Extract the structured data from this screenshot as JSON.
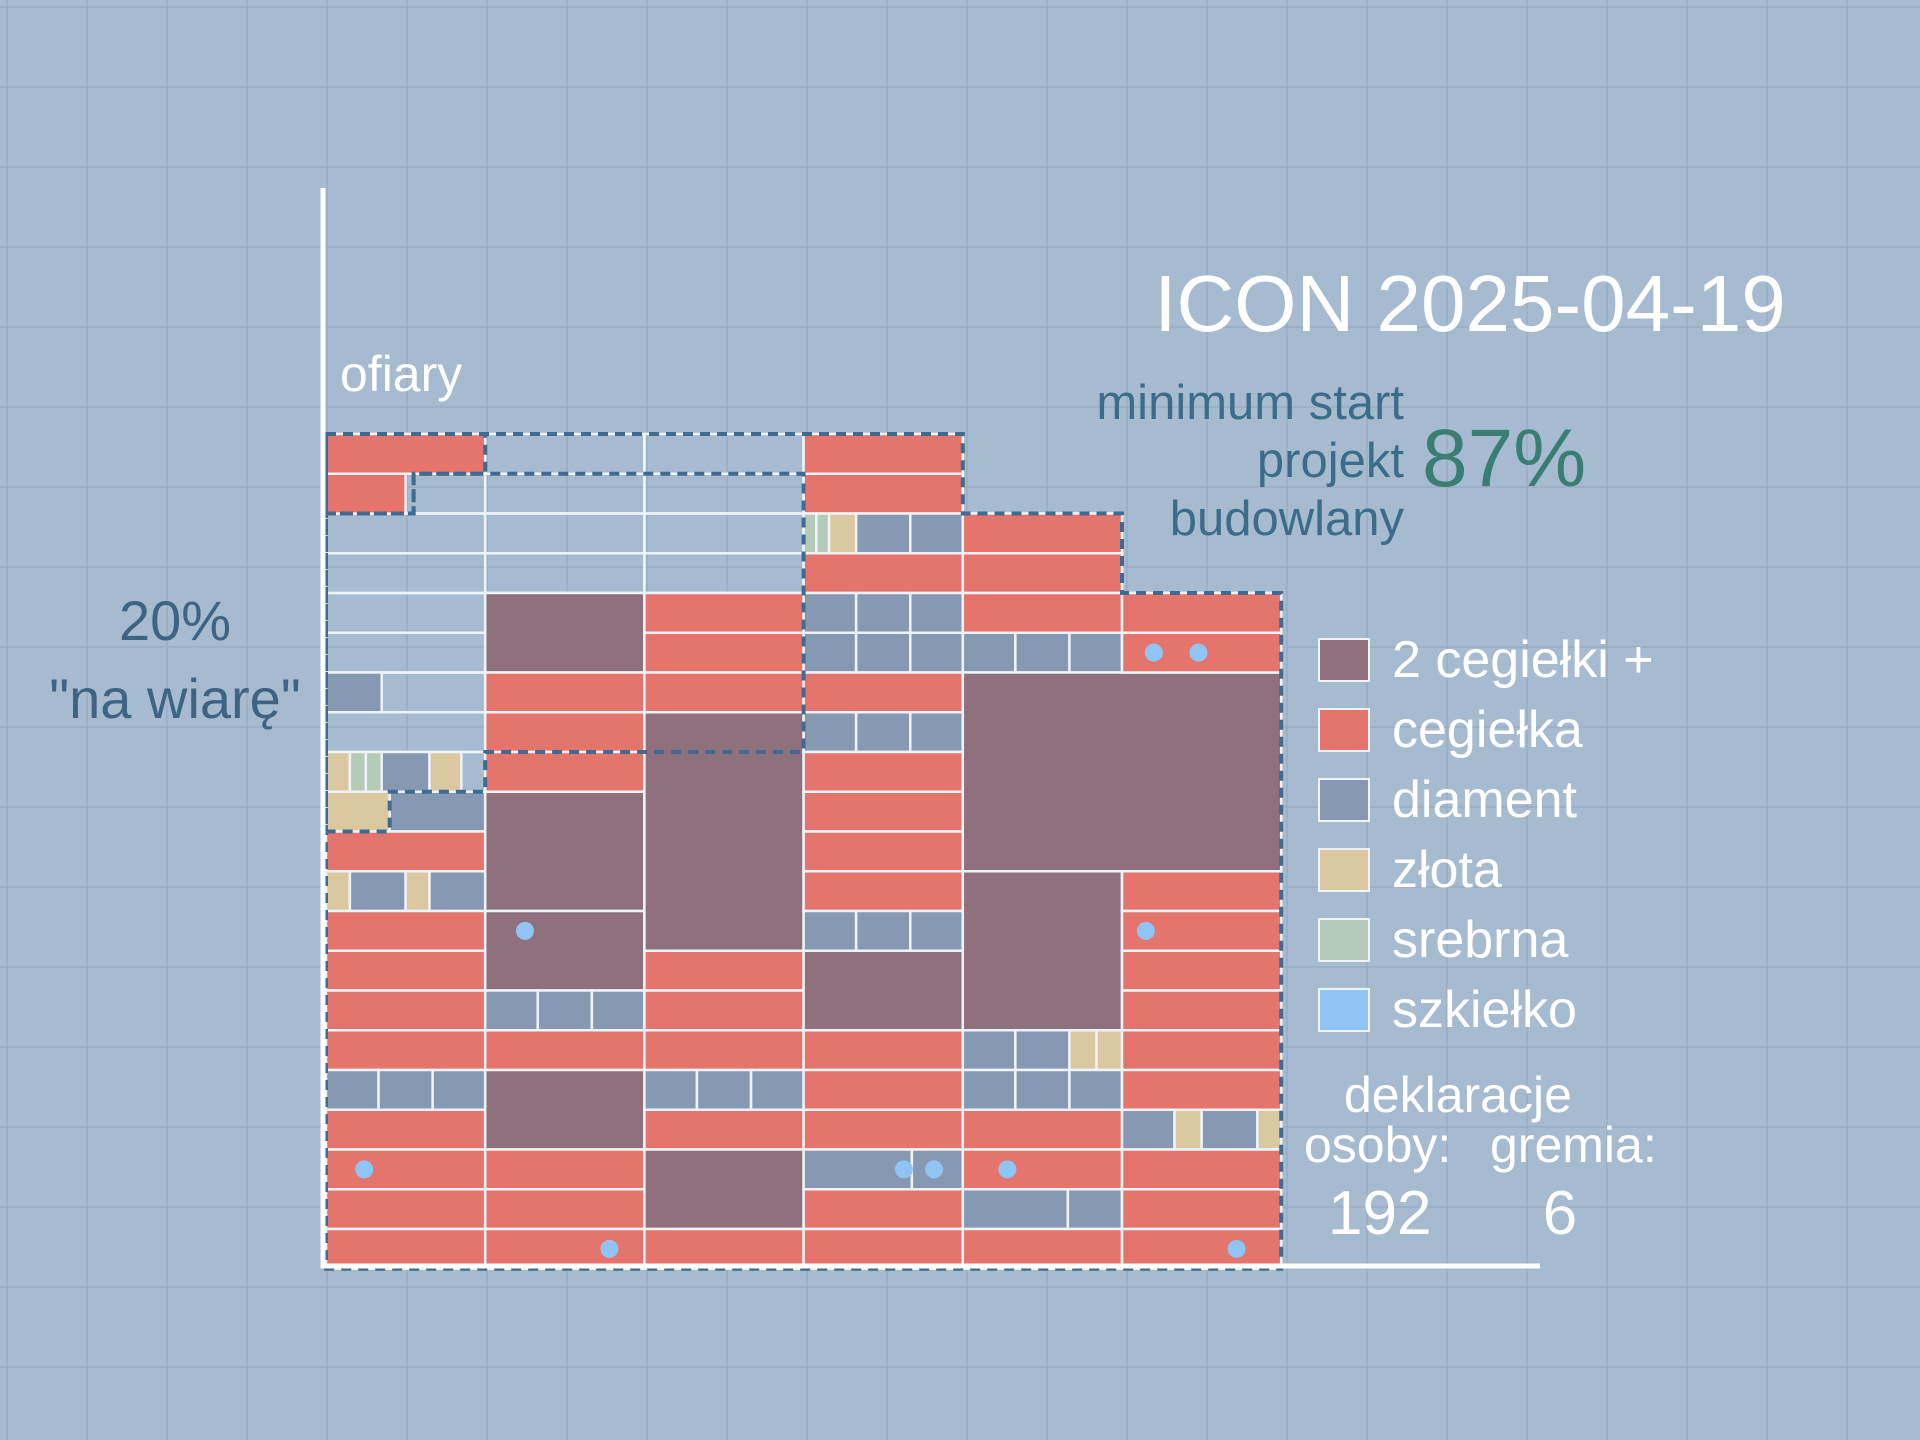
{
  "title": "ICON 2025-04-19",
  "chart_data": {
    "type": "brick-wall",
    "ylabel": "ofiary",
    "annotation_left": "20%\n\"na wiarę\"",
    "minimum_label": "minimum start\nprojekt\nbudowlany",
    "minimum_value": "87%",
    "rows_total": 21,
    "column_heights_rows": [
      21,
      21,
      21,
      21,
      19,
      17
    ],
    "legend": [
      {
        "key": "plus2",
        "label": "2 cegiełki +",
        "color": "#8f717d"
      },
      {
        "key": "brick",
        "label": "cegiełka",
        "color": "#e5756c"
      },
      {
        "key": "diamond",
        "label": "diament",
        "color": "#8799b2"
      },
      {
        "key": "gold",
        "label": "złota",
        "color": "#dcc8a0"
      },
      {
        "key": "silver",
        "label": "srebrna",
        "color": "#b5cab9"
      },
      {
        "key": "glass",
        "label": "szkiełko",
        "color": "#8fc4f5"
      }
    ],
    "columns": [
      [
        [
          "brick",
          0,
          1
        ],
        [
          "brick",
          1,
          1,
          0.5
        ],
        [
          "diamond",
          6,
          1,
          0.35
        ],
        [
          "gold",
          8,
          1,
          0.15
        ],
        [
          "silver",
          8,
          1,
          0.1
        ],
        [
          "silver",
          8,
          1,
          0.1
        ],
        [
          "diamond",
          8,
          1,
          0.3
        ],
        [
          "gold",
          8,
          1,
          0.2
        ],
        [
          "gold",
          9,
          1,
          0.4
        ],
        [
          "diamond",
          9,
          1,
          0.6
        ],
        [
          "brick",
          10,
          1
        ],
        [
          "gold",
          11,
          1,
          0.15
        ],
        [
          "diamond",
          11,
          1,
          0.35
        ],
        [
          "gold",
          11,
          1,
          0.15
        ],
        [
          "diamond",
          11,
          1,
          0.35
        ],
        [
          "brick",
          12,
          1
        ],
        [
          "brick",
          13,
          1
        ],
        [
          "brick",
          14,
          1
        ],
        [
          "brick",
          15,
          1
        ],
        [
          "diamond",
          16,
          1,
          0.33
        ],
        [
          "diamond",
          16,
          1,
          0.34
        ],
        [
          "diamond",
          16,
          1,
          0.33
        ],
        [
          "brick",
          17,
          1
        ],
        [
          "brick",
          18,
          1
        ],
        [
          "brick",
          19,
          1
        ],
        [
          "brick",
          20,
          1
        ]
      ],
      [
        [
          "plus2",
          4,
          2
        ],
        [
          "brick",
          6,
          1
        ],
        [
          "brick",
          7,
          1
        ],
        [
          "brick",
          8,
          1
        ],
        [
          "plus2",
          9,
          3
        ],
        [
          "plus2",
          12,
          2
        ],
        [
          "diamond",
          14,
          1,
          0.33
        ],
        [
          "diamond",
          14,
          1,
          0.34
        ],
        [
          "diamond",
          14,
          1,
          0.33
        ],
        [
          "brick",
          15,
          1
        ],
        [
          "plus2",
          16,
          2
        ],
        [
          "brick",
          18,
          1
        ],
        [
          "brick",
          19,
          1
        ],
        [
          "brick",
          20,
          1
        ]
      ],
      [
        [
          "brick",
          4,
          1
        ],
        [
          "brick",
          5,
          1
        ],
        [
          "brick",
          6,
          1
        ],
        [
          "plus2",
          7,
          6
        ],
        [
          "brick",
          13,
          1
        ],
        [
          "brick",
          14,
          1
        ],
        [
          "brick",
          15,
          1
        ],
        [
          "diamond",
          16,
          1,
          0.33
        ],
        [
          "diamond",
          16,
          1,
          0.34
        ],
        [
          "diamond",
          16,
          1,
          0.33
        ],
        [
          "brick",
          17,
          1
        ],
        [
          "plus2",
          18,
          2
        ],
        [
          "brick",
          20,
          1
        ]
      ],
      [
        [
          "brick",
          0,
          1
        ],
        [
          "brick",
          1,
          1
        ],
        [
          "silver",
          2,
          1,
          0.08
        ],
        [
          "silver",
          2,
          1,
          0.08
        ],
        [
          "gold",
          2,
          1,
          0.17
        ],
        [
          "diamond",
          2,
          1,
          0.34
        ],
        [
          "diamond",
          2,
          1,
          0.33
        ],
        [
          "brick",
          3,
          1
        ],
        [
          "diamond",
          4,
          1,
          0.33
        ],
        [
          "diamond",
          4,
          1,
          0.34
        ],
        [
          "diamond",
          4,
          1,
          0.33
        ],
        [
          "diamond",
          5,
          1,
          0.33
        ],
        [
          "diamond",
          5,
          1,
          0.34
        ],
        [
          "diamond",
          5,
          1,
          0.33
        ],
        [
          "brick",
          6,
          1
        ],
        [
          "diamond",
          7,
          1,
          0.33
        ],
        [
          "diamond",
          7,
          1,
          0.34
        ],
        [
          "diamond",
          7,
          1,
          0.33
        ],
        [
          "brick",
          8,
          1
        ],
        [
          "brick",
          9,
          1
        ],
        [
          "brick",
          10,
          1
        ],
        [
          "brick",
          11,
          1
        ],
        [
          "diamond",
          12,
          1,
          0.33
        ],
        [
          "diamond",
          12,
          1,
          0.34
        ],
        [
          "diamond",
          12,
          1,
          0.33
        ],
        [
          "plus2",
          13,
          2
        ],
        [
          "brick",
          15,
          1
        ],
        [
          "brick",
          16,
          1
        ],
        [
          "brick",
          17,
          1
        ],
        [
          "diamond",
          18,
          1,
          0.68
        ],
        [
          "diamond",
          18,
          1,
          0.32
        ],
        [
          "brick",
          19,
          1
        ],
        [
          "brick",
          20,
          1
        ]
      ],
      [
        [
          "brick",
          2,
          1
        ],
        [
          "brick",
          3,
          1
        ],
        [
          "brick",
          4,
          1
        ],
        [
          "diamond",
          5,
          1,
          0.33
        ],
        [
          "diamond",
          5,
          1,
          0.34
        ],
        [
          "diamond",
          5,
          1,
          0.33
        ],
        [
          "plus2",
          6,
          5,
          2
        ],
        [
          "plus2",
          11,
          4
        ],
        [
          "diamond",
          15,
          1,
          0.33
        ],
        [
          "diamond",
          15,
          1,
          0.34
        ],
        [
          "gold",
          15,
          1,
          0.17
        ],
        [
          "gold",
          15,
          1,
          0.16
        ],
        [
          "diamond",
          16,
          1,
          0.33
        ],
        [
          "diamond",
          16,
          1,
          0.34
        ],
        [
          "diamond",
          16,
          1,
          0.33
        ],
        [
          "brick",
          17,
          1
        ],
        [
          "brick",
          18,
          1
        ],
        [
          "diamond",
          19,
          1,
          0.66
        ],
        [
          "diamond",
          19,
          1,
          0.34
        ],
        [
          "brick",
          20,
          1
        ]
      ],
      [
        [
          "brick",
          4,
          1
        ],
        [
          "brick",
          5,
          1
        ],
        [
          "brick",
          11,
          1
        ],
        [
          "brick",
          12,
          1
        ],
        [
          "brick",
          13,
          1
        ],
        [
          "brick",
          14,
          1
        ],
        [
          "brick",
          15,
          1
        ],
        [
          "brick",
          16,
          1
        ],
        [
          "diamond",
          17,
          1,
          0.33
        ],
        [
          "gold",
          17,
          1,
          0.17
        ],
        [
          "diamond",
          17,
          1,
          0.35
        ],
        [
          "gold",
          17,
          1,
          0.15
        ],
        [
          "brick",
          18,
          1
        ],
        [
          "brick",
          19,
          1
        ],
        [
          "brick",
          20,
          1
        ]
      ]
    ],
    "faith_outline": [
      [
        0,
        0
      ],
      [
        1,
        0
      ],
      [
        1,
        1
      ],
      [
        3,
        1
      ],
      [
        3,
        2
      ],
      [
        4,
        2
      ],
      [
        4,
        4
      ],
      [
        5,
        4
      ],
      [
        5,
        6
      ],
      [
        6,
        6
      ],
      [
        6,
        17
      ],
      [
        0,
        17
      ]
    ],
    "glass_markers": [
      [
        5,
        5.5,
        0.2
      ],
      [
        5,
        5.5,
        0.48
      ],
      [
        1,
        12.5,
        0.25
      ],
      [
        5,
        12.5,
        0.15
      ],
      [
        3,
        18.5,
        0.63
      ],
      [
        3,
        18.5,
        0.82
      ],
      [
        0,
        18.5,
        0.24
      ],
      [
        4,
        18.5,
        0.28
      ],
      [
        1,
        20.5,
        0.78
      ],
      [
        5,
        20.5,
        0.72
      ]
    ],
    "declarations_title": "deklaracje",
    "osoby_label": "osoby:",
    "gremia_label": "gremia:",
    "osoby": 192,
    "gremia": 6
  }
}
